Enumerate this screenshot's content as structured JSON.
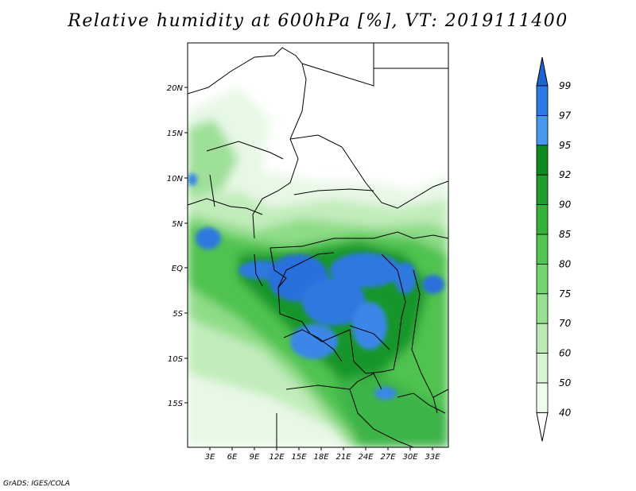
{
  "title": "Relative humidity at 600hPa [%], VT: 2019111400",
  "footer": "GrADS: IGES/COLA",
  "map": {
    "lat_ticks": [
      "20N",
      "15N",
      "10N",
      "5N",
      "EQ",
      "5S",
      "10S",
      "15S"
    ],
    "lon_ticks": [
      "3E",
      "6E",
      "9E",
      "12E",
      "15E",
      "18E",
      "21E",
      "24E",
      "27E",
      "30E",
      "33E"
    ]
  },
  "colorbar": {
    "labels": [
      "99",
      "97",
      "95",
      "92",
      "90",
      "85",
      "80",
      "75",
      "70",
      "60",
      "50",
      "40"
    ],
    "colors": [
      "#1e64d2",
      "#2a7be6",
      "#4697ee",
      "#0e8a1e",
      "#1f9e2c",
      "#34b23a",
      "#52c452",
      "#74d470",
      "#96e090",
      "#b8eab2",
      "#d6f4d2",
      "#f0fcee"
    ]
  }
}
